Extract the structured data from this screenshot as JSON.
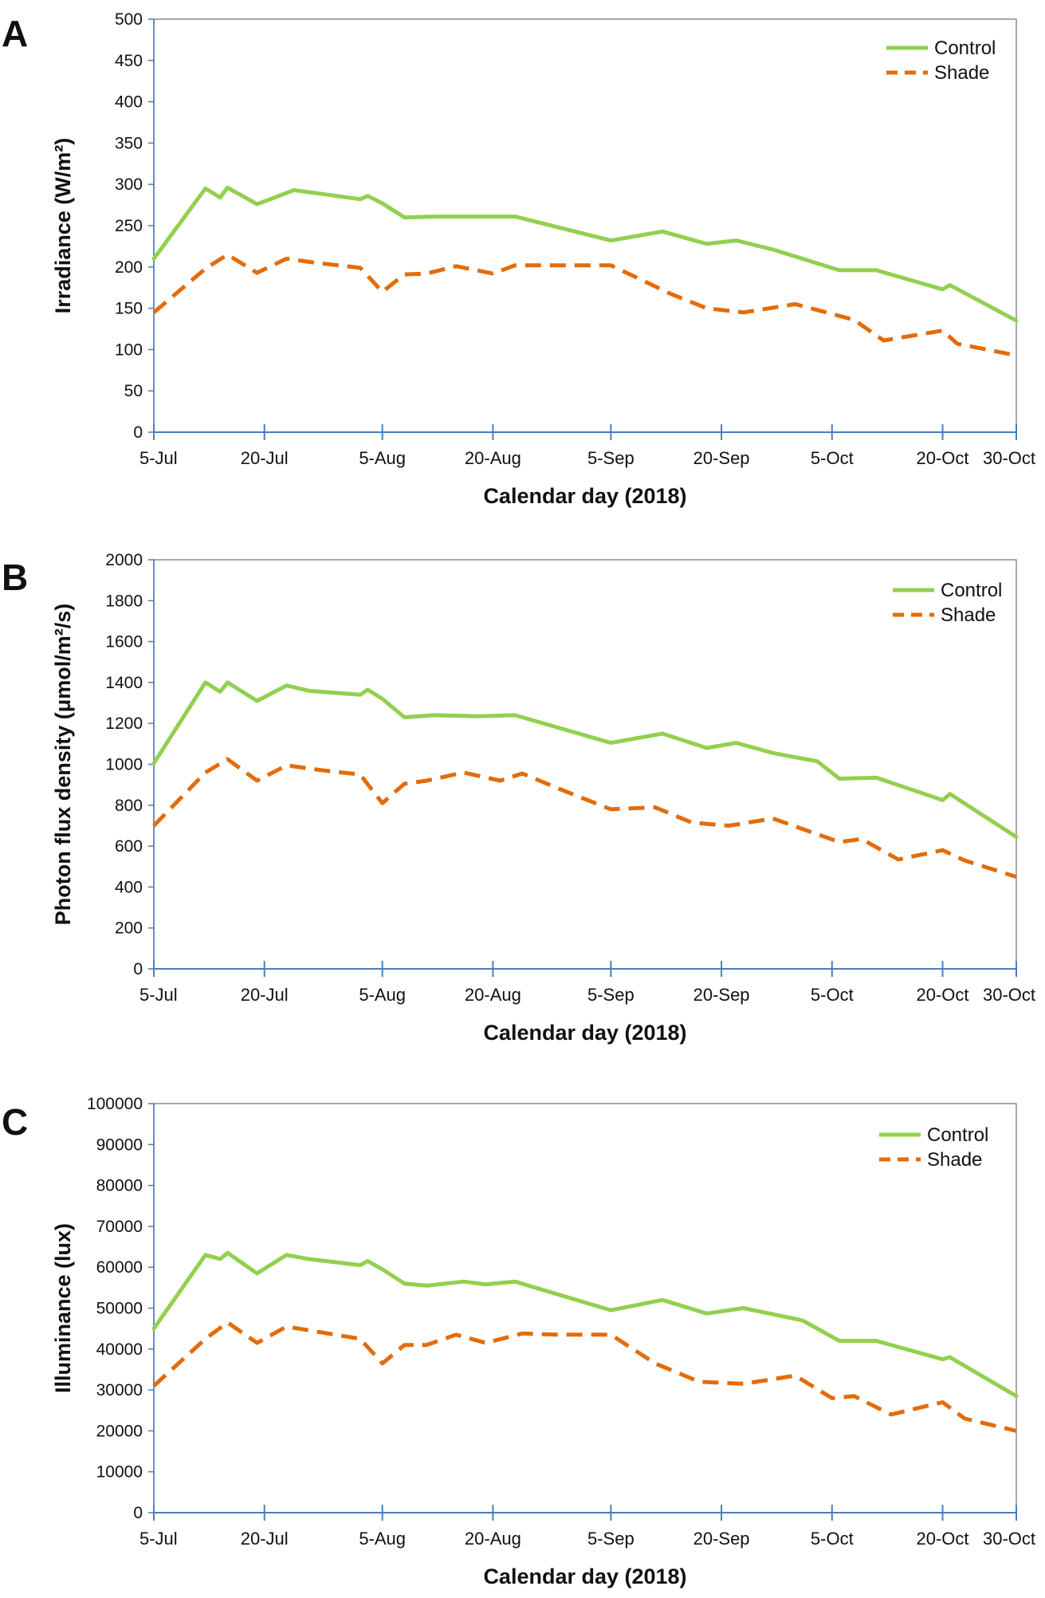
{
  "chart_data": [
    {
      "type": "line",
      "panel": "A",
      "title": "",
      "xlabel": "Calendar day (2018)",
      "ylabel": "Irradiance (W/m²)",
      "ylim": [
        0,
        500
      ],
      "yticks": [
        0,
        50,
        100,
        150,
        200,
        250,
        300,
        350,
        400,
        450,
        500
      ],
      "xlim": [
        0,
        117
      ],
      "xticks": [
        {
          "label": "5-Jul",
          "day": 0
        },
        {
          "label": "20-Jul",
          "day": 15
        },
        {
          "label": "5-Aug",
          "day": 31
        },
        {
          "label": "20-Aug",
          "day": 46
        },
        {
          "label": "5-Sep",
          "day": 62
        },
        {
          "label": "20-Sep",
          "day": 77
        },
        {
          "label": "5-Oct",
          "day": 92
        },
        {
          "label": "20-Oct",
          "day": 107
        },
        {
          "label": "30-Oct",
          "day": 117
        }
      ],
      "grid": false,
      "legend_position": "top-right",
      "series": [
        {
          "name": "Control",
          "color": "#92d050",
          "style": "solid",
          "x": [
            0,
            7,
            9,
            10,
            14,
            19,
            24,
            28,
            29,
            31,
            34,
            38,
            44,
            49,
            62,
            69,
            75,
            79,
            84,
            93,
            98,
            107,
            108,
            117
          ],
          "y": [
            210,
            295,
            284,
            296,
            276,
            293,
            287,
            282,
            286,
            277,
            260,
            261,
            261,
            261,
            232,
            243,
            228,
            232,
            221,
            196,
            196,
            173,
            178,
            135
          ]
        },
        {
          "name": "Shade",
          "color": "#e36c0a",
          "style": "dashed",
          "x": [
            0,
            7,
            10,
            14,
            18,
            22,
            28,
            31,
            34,
            37,
            41,
            46,
            49,
            54,
            62,
            70,
            75,
            80,
            87,
            95,
            99,
            107,
            109,
            117
          ],
          "y": [
            145,
            198,
            215,
            193,
            210,
            205,
            199,
            170,
            191,
            192,
            201,
            192,
            202,
            202,
            202,
            168,
            150,
            145,
            155,
            136,
            111,
            123,
            107,
            93
          ]
        }
      ]
    },
    {
      "type": "line",
      "panel": "B",
      "title": "",
      "xlabel": "Calendar day (2018)",
      "ylabel": "Photon flux density (μmol/m²/s)",
      "ylim": [
        0,
        2000
      ],
      "yticks": [
        0,
        200,
        400,
        600,
        800,
        1000,
        1200,
        1400,
        1600,
        1800,
        2000
      ],
      "xlim": [
        0,
        117
      ],
      "xticks": [
        {
          "label": "5-Jul",
          "day": 0
        },
        {
          "label": "20-Jul",
          "day": 15
        },
        {
          "label": "5-Aug",
          "day": 31
        },
        {
          "label": "20-Aug",
          "day": 46
        },
        {
          "label": "5-Sep",
          "day": 62
        },
        {
          "label": "20-Sep",
          "day": 77
        },
        {
          "label": "5-Oct",
          "day": 92
        },
        {
          "label": "20-Oct",
          "day": 107
        },
        {
          "label": "30-Oct",
          "day": 117
        }
      ],
      "grid": false,
      "legend_position": "top-right",
      "series": [
        {
          "name": "Control",
          "color": "#92d050",
          "style": "solid",
          "x": [
            0,
            7,
            9,
            10,
            14,
            18,
            21,
            28,
            29,
            31,
            34,
            38,
            44,
            49,
            62,
            69,
            75,
            79,
            84,
            90,
            93,
            98,
            107,
            108,
            117
          ],
          "y": [
            1005,
            1400,
            1355,
            1400,
            1310,
            1385,
            1360,
            1340,
            1365,
            1320,
            1230,
            1240,
            1235,
            1240,
            1105,
            1150,
            1080,
            1105,
            1055,
            1015,
            930,
            935,
            825,
            855,
            645
          ]
        },
        {
          "name": "Shade",
          "color": "#e36c0a",
          "style": "dashed",
          "x": [
            0,
            7,
            10,
            14,
            18,
            23,
            28,
            31,
            34,
            37,
            42,
            47,
            50,
            55,
            62,
            68,
            73,
            78,
            84,
            93,
            96,
            101,
            107,
            110,
            117
          ],
          "y": [
            700,
            960,
            1025,
            920,
            995,
            970,
            950,
            810,
            905,
            920,
            960,
            920,
            955,
            880,
            780,
            790,
            715,
            700,
            735,
            620,
            635,
            535,
            580,
            530,
            450
          ]
        }
      ]
    },
    {
      "type": "line",
      "panel": "C",
      "title": "",
      "xlabel": "Calendar day (2018)",
      "ylabel": "Illuminance (lux)",
      "ylim": [
        0,
        100000
      ],
      "yticks": [
        0,
        10000,
        20000,
        30000,
        40000,
        50000,
        60000,
        70000,
        80000,
        90000,
        100000
      ],
      "xlim": [
        0,
        117
      ],
      "xticks": [
        {
          "label": "5-Jul",
          "day": 0
        },
        {
          "label": "20-Jul",
          "day": 15
        },
        {
          "label": "5-Aug",
          "day": 31
        },
        {
          "label": "20-Aug",
          "day": 46
        },
        {
          "label": "5-Sep",
          "day": 62
        },
        {
          "label": "20-Sep",
          "day": 77
        },
        {
          "label": "5-Oct",
          "day": 92
        },
        {
          "label": "20-Oct",
          "day": 107
        },
        {
          "label": "30-Oct",
          "day": 117
        }
      ],
      "grid": false,
      "legend_position": "top-right",
      "series": [
        {
          "name": "Control",
          "color": "#92d050",
          "style": "solid",
          "x": [
            0,
            7,
            9,
            10,
            14,
            18,
            21,
            28,
            29,
            31,
            34,
            37,
            42,
            45,
            49,
            62,
            69,
            75,
            80,
            88,
            93,
            98,
            107,
            108,
            117
          ],
          "y": [
            45000,
            63000,
            62000,
            63500,
            58500,
            63000,
            62000,
            60500,
            61500,
            59500,
            56000,
            55500,
            56500,
            55800,
            56500,
            49500,
            52000,
            48700,
            50000,
            47000,
            42000,
            42000,
            37500,
            38000,
            28500
          ]
        },
        {
          "name": "Shade",
          "color": "#e36c0a",
          "style": "dashed",
          "x": [
            0,
            7,
            10,
            14,
            18,
            23,
            28,
            31,
            34,
            37,
            41,
            45,
            50,
            55,
            62,
            68,
            74,
            80,
            87,
            92,
            95,
            100,
            107,
            110,
            117
          ],
          "y": [
            31000,
            42500,
            46500,
            41500,
            45500,
            44000,
            42500,
            36500,
            41000,
            41000,
            43500,
            41500,
            43800,
            43500,
            43500,
            36500,
            32000,
            31500,
            33500,
            28000,
            28500,
            24000,
            27000,
            23000,
            20000
          ]
        }
      ]
    }
  ]
}
